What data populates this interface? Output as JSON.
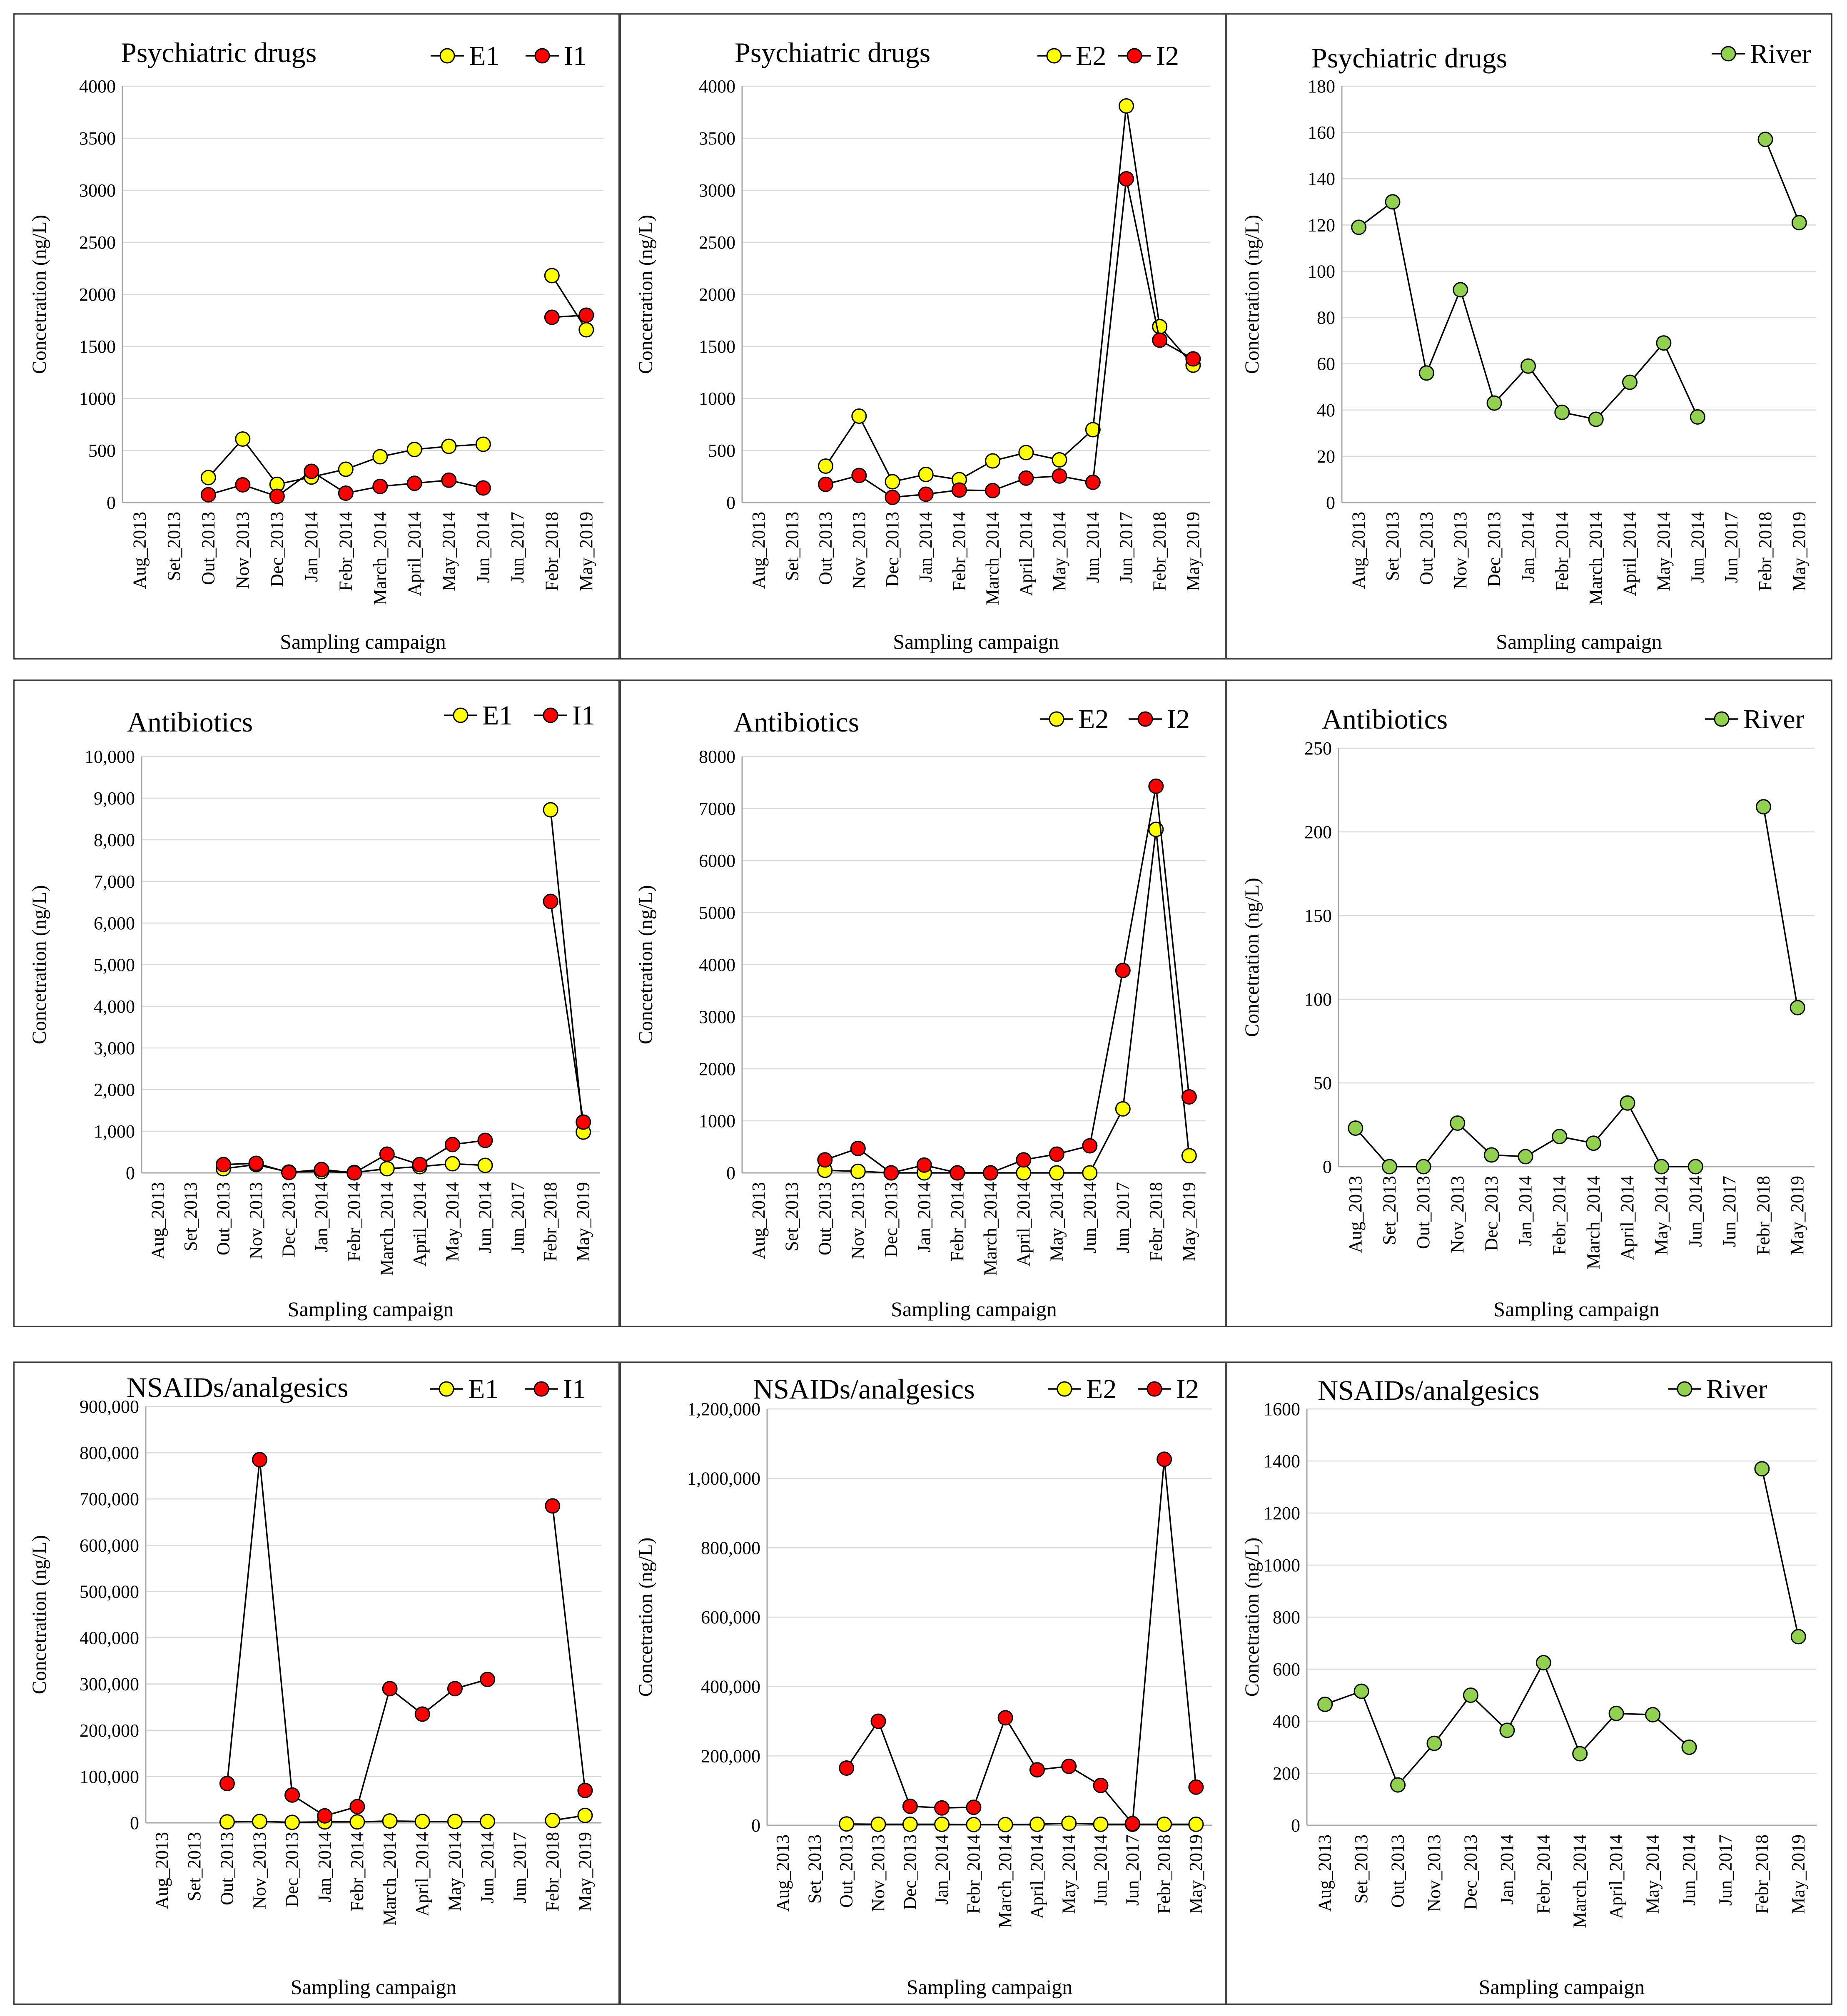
{
  "colors": {
    "E": "#ffff00",
    "I": "#ff0000",
    "River": "#92d050",
    "line": "#000000",
    "grid": "#d9d9d9",
    "axis": "#a6a6a6"
  },
  "chart_data": [
    {
      "type": "line",
      "title": "Psychiatric drugs",
      "xlabel": "Sampling campaign",
      "ylabel": "Concetration (ng/L)",
      "ylim": [
        0,
        4000
      ],
      "yticks": [
        "0",
        "500",
        "1000",
        "1500",
        "2000",
        "2500",
        "3000",
        "3500",
        "4000"
      ],
      "categories": [
        "Aug_2013",
        "Set_2013",
        "Out_2013",
        "Nov_2013",
        "Dec_2013",
        "Jan_2014",
        "Febr_2014",
        "March_2014",
        "April_2014",
        "May_2014",
        "Jun_2014",
        "Jun_2017",
        "Febr_2018",
        "May_2019"
      ],
      "series": [
        {
          "name": "E1",
          "color": "#ffff00",
          "values": [
            null,
            null,
            240,
            610,
            175,
            245,
            320,
            440,
            510,
            540,
            560,
            null,
            2180,
            1660
          ]
        },
        {
          "name": "I1",
          "color": "#ff0000",
          "values": [
            null,
            null,
            75,
            170,
            60,
            300,
            90,
            155,
            185,
            215,
            140,
            null,
            1780,
            1800
          ]
        }
      ]
    },
    {
      "type": "line",
      "title": "Psychiatric drugs",
      "xlabel": "Sampling campaign",
      "ylabel": "Concetration (ng/L)",
      "ylim": [
        0,
        4000
      ],
      "yticks": [
        "0",
        "500",
        "1000",
        "1500",
        "2000",
        "2500",
        "3000",
        "3500",
        "4000"
      ],
      "categories": [
        "Aug_2013",
        "Set_2013",
        "Out_2013",
        "Nov_2013",
        "Dec_2013",
        "Jan_2014",
        "Febr_2014",
        "March_2014",
        "April_2014",
        "May_2014",
        "Jun_2014",
        "Jun_2017",
        "Febr_2018",
        "May_2019"
      ],
      "series": [
        {
          "name": "E2",
          "color": "#ffff00",
          "values": [
            null,
            null,
            350,
            830,
            200,
            270,
            220,
            400,
            480,
            410,
            700,
            3810,
            1690,
            1320
          ]
        },
        {
          "name": "I2",
          "color": "#ff0000",
          "values": [
            null,
            null,
            175,
            260,
            50,
            80,
            120,
            115,
            235,
            255,
            195,
            3110,
            1560,
            1380
          ]
        }
      ]
    },
    {
      "type": "line",
      "title": "Psychiatric drugs",
      "xlabel": "Sampling campaign",
      "ylabel": "Concetration (ng/L)",
      "ylim": [
        0,
        180
      ],
      "yticks": [
        "0",
        "20",
        "40",
        "60",
        "80",
        "100",
        "120",
        "140",
        "160",
        "180"
      ],
      "categories": [
        "Aug_2013",
        "Set_2013",
        "Out_2013",
        "Nov_2013",
        "Dec_2013",
        "Jan_2014",
        "Febr_2014",
        "March_2014",
        "April_2014",
        "May_2014",
        "Jun_2014",
        "Jun_2017",
        "Febr_2018",
        "May_2019"
      ],
      "series": [
        {
          "name": "River",
          "color": "#92d050",
          "values": [
            119,
            130,
            56,
            92,
            43,
            59,
            39,
            36,
            52,
            69,
            37,
            null,
            157,
            121
          ]
        }
      ]
    },
    {
      "type": "line",
      "title": "Antibiotics",
      "xlabel": "Sampling campaign",
      "ylabel": "Concetration (ng/L)",
      "ylim": [
        0,
        10000
      ],
      "yticks": [
        "0",
        "1,000",
        "2,000",
        "3,000",
        "4,000",
        "5,000",
        "6,000",
        "7,000",
        "8,000",
        "9,000",
        "10,000"
      ],
      "categories": [
        "Aug_2013",
        "Set_2013",
        "Out_2013",
        "Nov_2013",
        "Dec_2013",
        "Jan_2014",
        "Febr_2014",
        "March_2014",
        "April_2014",
        "May_2014",
        "Jun_2014",
        "Jun_2017",
        "Febr_2018",
        "May_2019"
      ],
      "series": [
        {
          "name": "E1",
          "color": "#ffff00",
          "values": [
            null,
            null,
            100,
            200,
            20,
            30,
            10,
            100,
            150,
            220,
            180,
            null,
            8720,
            980
          ]
        },
        {
          "name": "I1",
          "color": "#ff0000",
          "values": [
            null,
            null,
            200,
            230,
            10,
            80,
            0,
            450,
            200,
            680,
            780,
            null,
            6520,
            1220
          ]
        }
      ]
    },
    {
      "type": "line",
      "title": "Antibiotics",
      "xlabel": "Sampling campaign",
      "ylabel": "Concetration (ng/L)",
      "ylim": [
        0,
        8000
      ],
      "yticks": [
        "0",
        "1000",
        "2000",
        "3000",
        "4000",
        "5000",
        "6000",
        "7000",
        "8000"
      ],
      "categories": [
        "Aug_2013",
        "Set_2013",
        "Out_2013",
        "Nov_2013",
        "Dec_2013",
        "Jan_2014",
        "Febr_2014",
        "March_2014",
        "April_2014",
        "May_2014",
        "Jun_2014",
        "Jun_2017",
        "Febr_2018",
        "May_2019"
      ],
      "series": [
        {
          "name": "E2",
          "color": "#ffff00",
          "values": [
            null,
            null,
            50,
            30,
            0,
            0,
            0,
            0,
            0,
            0,
            0,
            1230,
            6600,
            330
          ]
        },
        {
          "name": "I2",
          "color": "#ff0000",
          "values": [
            null,
            null,
            250,
            470,
            0,
            150,
            0,
            0,
            250,
            360,
            520,
            3890,
            7430,
            1460
          ]
        }
      ]
    },
    {
      "type": "line",
      "title": "Antibiotics",
      "xlabel": "Sampling campaign",
      "ylabel": "Concetration (ng/L)",
      "ylim": [
        0,
        250
      ],
      "yticks": [
        "0",
        "50",
        "100",
        "150",
        "200",
        "250"
      ],
      "categories": [
        "Aug_2013",
        "Set_2013",
        "Out_2013",
        "Nov_2013",
        "Dec_2013",
        "Jan_2014",
        "Febr_2014",
        "March_2014",
        "April_2014",
        "May_2014",
        "Jun_2014",
        "Jun_2017",
        "Febr_2018",
        "May_2019"
      ],
      "series": [
        {
          "name": "River",
          "color": "#92d050",
          "values": [
            23,
            0,
            0,
            26,
            7,
            6,
            18,
            14,
            38,
            0,
            0,
            null,
            215,
            95
          ]
        }
      ]
    },
    {
      "type": "line",
      "title": "NSAIDs/analgesics",
      "xlabel": "Sampling campaign",
      "ylabel": "Concetration (ng/L)",
      "ylim": [
        0,
        900000
      ],
      "yticks": [
        "0",
        "100,000",
        "200,000",
        "300,000",
        "400,000",
        "500,000",
        "600,000",
        "700,000",
        "800,000",
        "900,000"
      ],
      "categories": [
        "Aug_2013",
        "Set_2013",
        "Out_2013",
        "Nov_2013",
        "Dec_2013",
        "Jan_2014",
        "Febr_2014",
        "March_2014",
        "April_2014",
        "May_2014",
        "Jun_2014",
        "Jun_2017",
        "Febr_2018",
        "May_2019"
      ],
      "series": [
        {
          "name": "E1",
          "color": "#ffff00",
          "values": [
            null,
            null,
            2000,
            3000,
            1000,
            2000,
            2000,
            4000,
            3000,
            3000,
            3000,
            null,
            5000,
            16000
          ]
        },
        {
          "name": "I1",
          "color": "#ff0000",
          "values": [
            null,
            null,
            85000,
            785000,
            60000,
            15000,
            35000,
            290000,
            235000,
            290000,
            310000,
            null,
            685000,
            70000
          ]
        }
      ]
    },
    {
      "type": "line",
      "title": "NSAIDs/analgesics",
      "xlabel": "Sampling campaign",
      "ylabel": "Concetration (ng/L)",
      "ylim": [
        0,
        1200000
      ],
      "yticks": [
        "0",
        "200,000",
        "400,000",
        "600,000",
        "800,000",
        "1,000,000",
        "1,200,000"
      ],
      "categories": [
        "Aug_2013",
        "Set_2013",
        "Out_2013",
        "Nov_2013",
        "Dec_2013",
        "Jan_2014",
        "Febr_2014",
        "March_2014",
        "April_2014",
        "May_2014",
        "Jun_2014",
        "Jun_2017",
        "Febr_2018",
        "May_2019"
      ],
      "series": [
        {
          "name": "E2",
          "color": "#ffff00",
          "values": [
            null,
            null,
            4000,
            3000,
            3000,
            3000,
            2000,
            2000,
            3000,
            6000,
            3000,
            3000,
            3000,
            3000
          ]
        },
        {
          "name": "I2",
          "color": "#ff0000",
          "values": [
            null,
            null,
            165000,
            300000,
            55000,
            50000,
            52000,
            310000,
            160000,
            170000,
            115000,
            5000,
            1055000,
            110000
          ]
        }
      ]
    },
    {
      "type": "line",
      "title": "NSAIDs/analgesics",
      "xlabel": "Sampling campaign",
      "ylabel": "Concetration (ng/L)",
      "ylim": [
        0,
        1600
      ],
      "yticks": [
        "0",
        "200",
        "400",
        "600",
        "800",
        "1000",
        "1200",
        "1400",
        "1600"
      ],
      "categories": [
        "Aug_2013",
        "Set_2013",
        "Out_2013",
        "Nov_2013",
        "Dec_2013",
        "Jan_2014",
        "Febr_2014",
        "March_2014",
        "April_2014",
        "May_2014",
        "Jun_2014",
        "Jun_2017",
        "Febr_2018",
        "May_2019"
      ],
      "series": [
        {
          "name": "River",
          "color": "#92d050",
          "values": [
            465,
            515,
            155,
            315,
            500,
            365,
            625,
            275,
            430,
            425,
            300,
            null,
            1370,
            725
          ]
        }
      ]
    }
  ]
}
